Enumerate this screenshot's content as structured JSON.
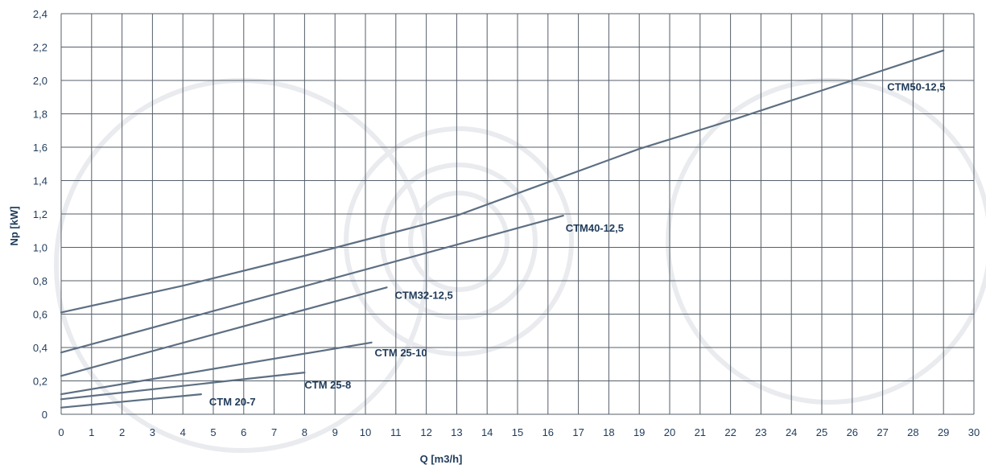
{
  "chart_data": {
    "type": "line",
    "xlabel": "Q [m3/h]",
    "ylabel": "Np [kW]",
    "xlim": [
      0,
      30
    ],
    "ylim": [
      0,
      2.4
    ],
    "grid": true,
    "x_ticks": [
      "0",
      "1",
      "2",
      "3",
      "4",
      "5",
      "6",
      "7",
      "8",
      "9",
      "10",
      "11",
      "12",
      "13",
      "14",
      "15",
      "16",
      "17",
      "18",
      "19",
      "20",
      "21",
      "22",
      "23",
      "24",
      "25",
      "26",
      "27",
      "28",
      "29",
      "30"
    ],
    "y_ticks": [
      "0",
      "0,2",
      "0,4",
      "0,6",
      "0,8",
      "1,0",
      "1,2",
      "1,4",
      "1,6",
      "1,8",
      "2,0",
      "2,2",
      "2,4"
    ],
    "colors": {
      "line": "#5d6f82",
      "grid": "#555f6a",
      "text": "#1f3b5a"
    },
    "series": [
      {
        "name": "CTM 20-7",
        "x": [
          0,
          4.6
        ],
        "y": [
          0.04,
          0.12
        ]
      },
      {
        "name": "CTM 25-8",
        "x": [
          0,
          8
        ],
        "y": [
          0.09,
          0.25
        ]
      },
      {
        "name": "CTM 25-10",
        "x": [
          0,
          10.2
        ],
        "y": [
          0.12,
          0.43
        ]
      },
      {
        "name": "CTM32-12,5",
        "x": [
          0,
          10.7
        ],
        "y": [
          0.23,
          0.76
        ]
      },
      {
        "name": "CTM40-12,5",
        "x": [
          0,
          16.5
        ],
        "y": [
          0.37,
          1.19
        ]
      },
      {
        "name": "CTM50-12,5",
        "x": [
          0,
          4,
          8,
          12,
          13,
          16,
          19,
          22,
          26,
          29
        ],
        "y": [
          0.61,
          0.77,
          0.95,
          1.14,
          1.19,
          1.39,
          1.59,
          1.76,
          2.0,
          2.18
        ]
      }
    ]
  }
}
